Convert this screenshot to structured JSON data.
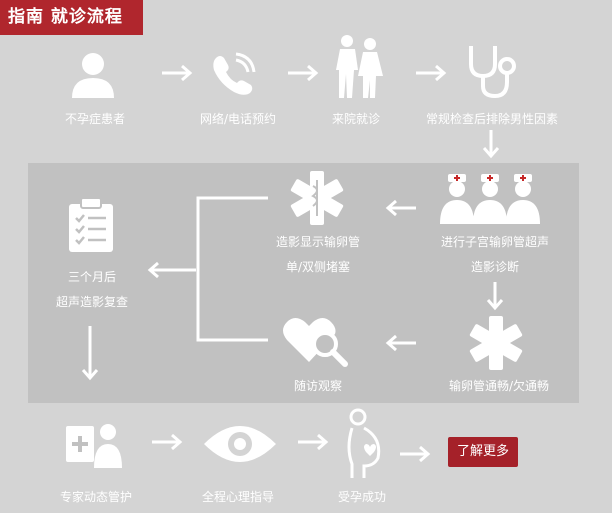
{
  "header": {
    "title": "指南 就诊流程"
  },
  "steps": {
    "infertile_patient": "不孕症患者",
    "phone_booking": "网络/电话预约",
    "visit_hospital": "来院就诊",
    "routine_exam": "常规检查后排除男性因素",
    "hsg_line1": "进行子宫输卵管超声",
    "hsg_line2": "造影诊断",
    "blocked_line1": "造影显示输卵管",
    "blocked_line2": "单/双侧堵塞",
    "three_months_line1": "三个月后",
    "three_months_line2": "超声造影复查",
    "follow_up": "随访观察",
    "tube_status": "输卵管通畅/欠通畅",
    "expert_management": "专家动态管护",
    "psych_guidance": "全程心理指导",
    "pregnancy_success": "受孕成功"
  },
  "actions": {
    "learn_more": "了解更多"
  },
  "colors": {
    "accent": "#b0262d",
    "background": "#d4d4d4",
    "panel": "#c1c1c1",
    "icon": "#ffffff"
  }
}
